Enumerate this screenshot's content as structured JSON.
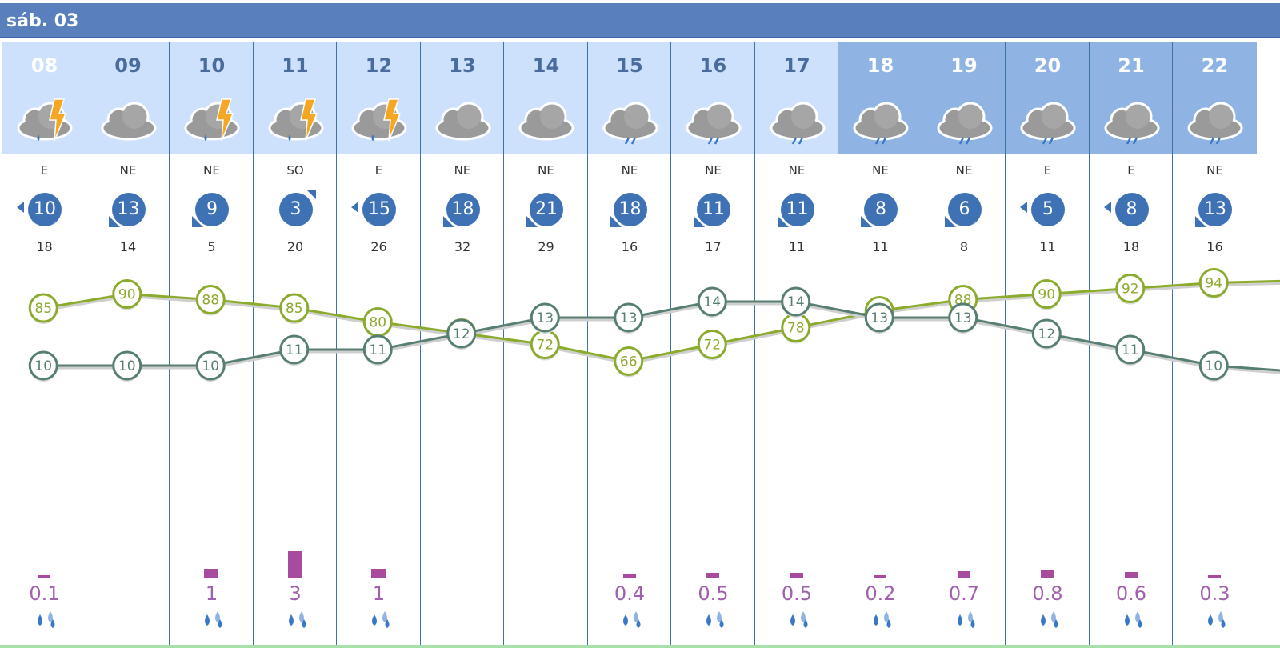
{
  "header": {
    "date": "sáb. 03"
  },
  "colors": {
    "humidity": "#8aab2c",
    "temperature": "#577f71",
    "rain": "#a84a9e",
    "wind": "#3f72b5"
  },
  "columns": [
    {
      "hour": "08",
      "icon": "storm-rain-icon",
      "wind_dir": "E",
      "wind": "10",
      "gust": "18",
      "rain": "0.1",
      "rain_mm": 0.1
    },
    {
      "hour": "09",
      "icon": "cloud-icon",
      "wind_dir": "NE",
      "wind": "13",
      "gust": "14",
      "rain": "",
      "rain_mm": 0
    },
    {
      "hour": "10",
      "icon": "storm-rain-icon",
      "wind_dir": "NE",
      "wind": "9",
      "gust": "5",
      "rain": "1",
      "rain_mm": 1
    },
    {
      "hour": "11",
      "icon": "storm-rain-icon",
      "wind_dir": "SO",
      "wind": "3",
      "gust": "20",
      "rain": "3",
      "rain_mm": 3
    },
    {
      "hour": "12",
      "icon": "storm-rain-icon",
      "wind_dir": "E",
      "wind": "15",
      "gust": "26",
      "rain": "1",
      "rain_mm": 1
    },
    {
      "hour": "13",
      "icon": "cloud-icon",
      "wind_dir": "NE",
      "wind": "18",
      "gust": "32",
      "rain": "",
      "rain_mm": 0
    },
    {
      "hour": "14",
      "icon": "cloud-icon",
      "wind_dir": "NE",
      "wind": "21",
      "gust": "29",
      "rain": "",
      "rain_mm": 0
    },
    {
      "hour": "15",
      "icon": "cloud-rain-icon",
      "wind_dir": "NE",
      "wind": "18",
      "gust": "16",
      "rain": "0.4",
      "rain_mm": 0.4
    },
    {
      "hour": "16",
      "icon": "cloud-rain-icon",
      "wind_dir": "NE",
      "wind": "11",
      "gust": "17",
      "rain": "0.5",
      "rain_mm": 0.5
    },
    {
      "hour": "17",
      "icon": "cloud-rain-icon",
      "wind_dir": "NE",
      "wind": "11",
      "gust": "11",
      "rain": "0.5",
      "rain_mm": 0.5
    },
    {
      "hour": "18",
      "icon": "cloud-rain-icon",
      "wind_dir": "NE",
      "wind": "8",
      "gust": "11",
      "rain": "0.2",
      "rain_mm": 0.2
    },
    {
      "hour": "19",
      "icon": "cloud-rain-icon",
      "wind_dir": "NE",
      "wind": "6",
      "gust": "8",
      "rain": "0.7",
      "rain_mm": 0.7
    },
    {
      "hour": "20",
      "icon": "cloud-rain-icon",
      "wind_dir": "E",
      "wind": "5",
      "gust": "11",
      "rain": "0.8",
      "rain_mm": 0.8
    },
    {
      "hour": "21",
      "icon": "cloud-rain-icon",
      "wind_dir": "E",
      "wind": "8",
      "gust": "18",
      "rain": "0.6",
      "rain_mm": 0.6
    },
    {
      "hour": "22",
      "icon": "cloud-rain-icon",
      "wind_dir": "NE",
      "wind": "13",
      "gust": "16",
      "rain": "0.3",
      "rain_mm": 0.3
    }
  ],
  "chart_data": {
    "type": "line",
    "categories": [
      "08",
      "09",
      "10",
      "11",
      "12",
      "13",
      "14",
      "15",
      "16",
      "17",
      "18",
      "19",
      "20",
      "21",
      "22"
    ],
    "series": [
      {
        "values": [
          85,
          90,
          88,
          85,
          80,
          76,
          72,
          66,
          72,
          78,
          84,
          88,
          90,
          92,
          94
        ]
      },
      {
        "values": [
          10,
          10,
          10,
          11,
          11,
          12,
          13,
          13,
          14,
          14,
          13,
          13,
          12,
          11,
          10
        ]
      }
    ]
  }
}
